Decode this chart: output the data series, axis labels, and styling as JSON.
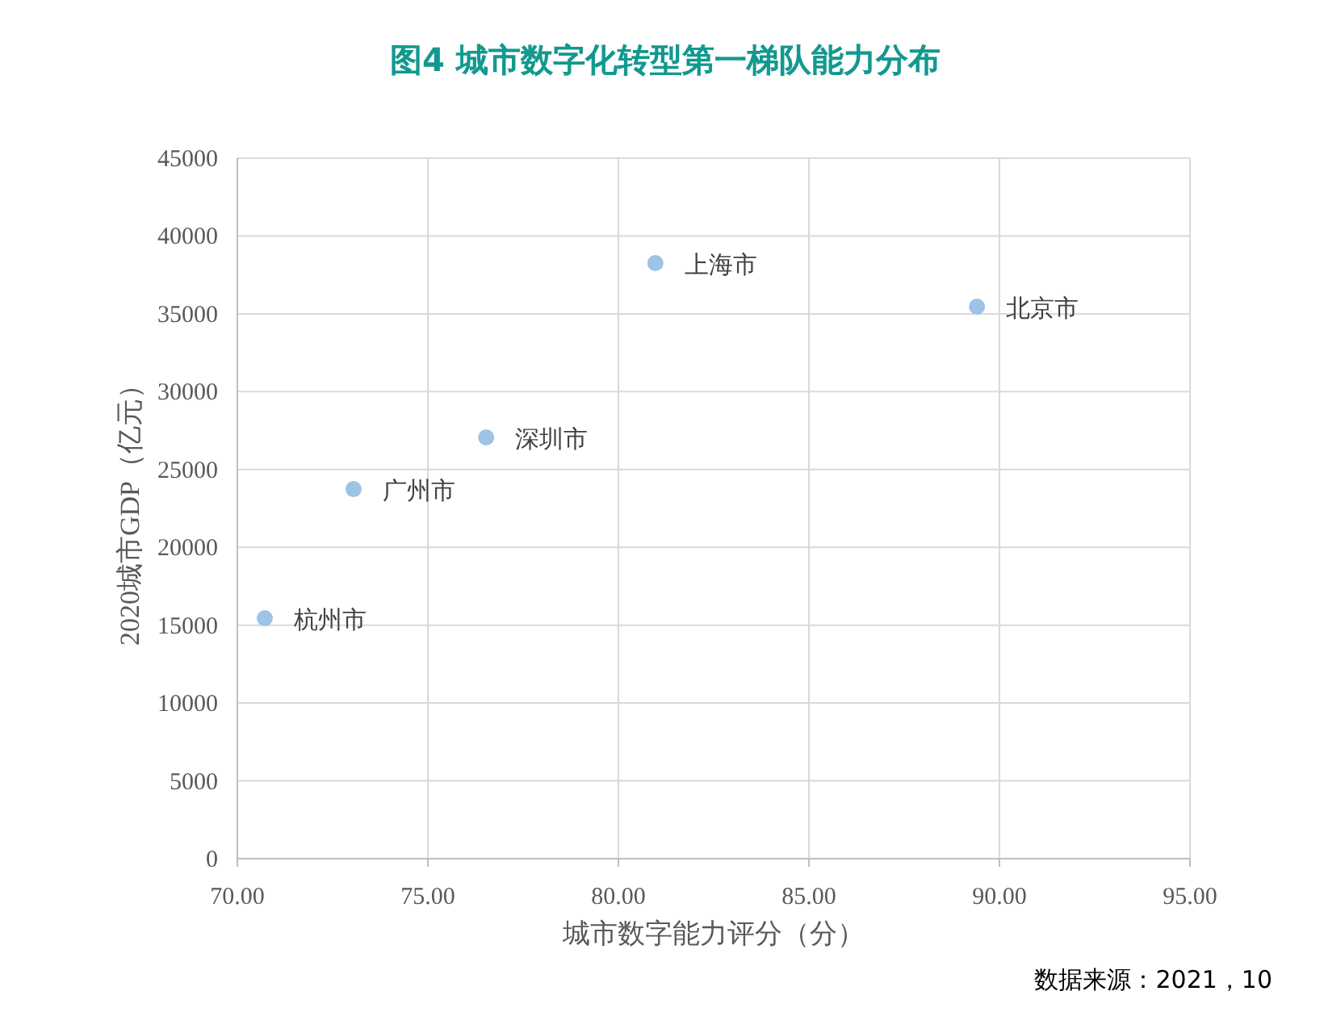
{
  "chart_data": {
    "type": "scatter",
    "title": "图4  城市数字化转型第一梯队能力分布",
    "xlabel": "城市数字能力评分（分）",
    "ylabel": "2020城市GDP（亿元）",
    "x": [
      70.72,
      73.05,
      76.53,
      80.97,
      89.41
    ],
    "series": [
      {
        "color": "#9dc3e6",
        "values": [
          15450,
          23740,
          27060,
          38260,
          35460
        ]
      }
    ],
    "xlim": [
      70,
      95
    ],
    "xticks": [
      {
        "value": 70,
        "label": "70.00"
      },
      {
        "value": 75,
        "label": "75.00"
      },
      {
        "value": 80,
        "label": "80.00"
      },
      {
        "value": 85,
        "label": "85.00"
      },
      {
        "value": 90,
        "label": "90.00"
      },
      {
        "value": 95,
        "label": "95.00"
      }
    ],
    "ylim": [
      0,
      45000
    ],
    "yticks": [
      0,
      5000,
      10000,
      15000,
      20000,
      25000,
      30000,
      35000,
      40000,
      45000
    ],
    "grid": true,
    "marker": "circle",
    "annotations": [
      {
        "text": "杭州市",
        "x": 70.72,
        "y": 15450
      },
      {
        "text": "广州市",
        "x": 73.05,
        "y": 23740
      },
      {
        "text": "深圳市",
        "x": 76.53,
        "y": 27060
      },
      {
        "text": "上海市",
        "x": 80.97,
        "y": 38260
      },
      {
        "text": "北京市",
        "x": 89.41,
        "y": 35460
      },
      "数据来源：2021，10"
    ]
  }
}
